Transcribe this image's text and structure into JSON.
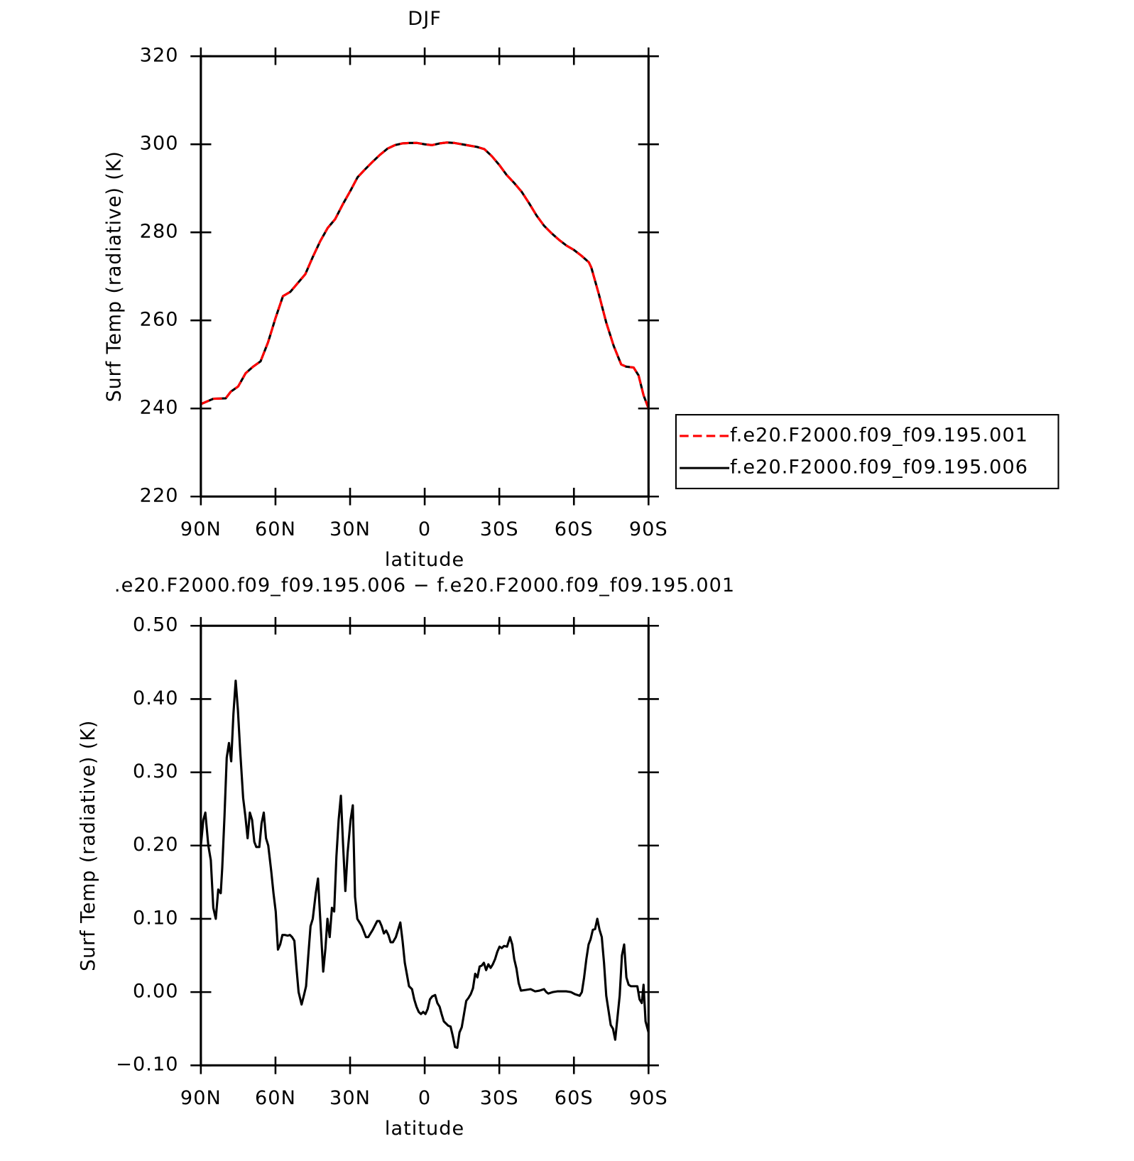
{
  "chart_data": [
    {
      "type": "line",
      "title": "DJF",
      "xlabel": "latitude",
      "ylabel": "Surf Temp (radiative) (K)",
      "x": [
        90,
        85,
        80,
        78,
        75,
        72,
        69,
        66,
        63,
        60,
        57,
        54,
        51,
        48,
        45,
        42,
        39,
        36,
        33,
        30,
        27,
        24,
        21,
        18,
        15,
        12,
        9,
        6,
        3,
        0,
        -3,
        -6,
        -9,
        -12,
        -15,
        -18,
        -21,
        -24,
        -27,
        -30,
        -33,
        -36,
        -39,
        -42,
        -45,
        -48,
        -51,
        -54,
        -57,
        -60,
        -63,
        -66,
        -67,
        -70,
        -73,
        -76,
        -79,
        -81,
        -84,
        -86,
        -88,
        -90
      ],
      "series": [
        {
          "name": "f.e20.F2000.f09_f09.195.006",
          "color": "#000000",
          "dash": false,
          "values": [
            241,
            242.2,
            242.3,
            243.8,
            245,
            248,
            249.5,
            250.7,
            255,
            260.5,
            265.5,
            266.5,
            268.5,
            270.5,
            274.4,
            278,
            281,
            283,
            286.3,
            289.3,
            292.5,
            294.3,
            296,
            297.6,
            299,
            299.8,
            300.2,
            300.3,
            300.3,
            300,
            299.8,
            300.2,
            300.4,
            300.3,
            300,
            299.7,
            299.4,
            298.9,
            297.3,
            295.3,
            293,
            291.2,
            289.2,
            286.6,
            283.8,
            281.5,
            279.8,
            278.3,
            277,
            276,
            274.7,
            273.2,
            272,
            266,
            259.5,
            254.2,
            250,
            249.5,
            249.3,
            247.5,
            243,
            240
          ]
        },
        {
          "name": "f.e20.F2000.f09_f09.195.001",
          "color": "#ff0000",
          "dash": true,
          "values": [
            241,
            242.2,
            242.3,
            243.8,
            245,
            248,
            249.5,
            250.7,
            255,
            260.5,
            265.5,
            266.5,
            268.5,
            270.5,
            274.4,
            278,
            281,
            283,
            286.3,
            289.3,
            292.5,
            294.3,
            296,
            297.6,
            299,
            299.8,
            300.2,
            300.3,
            300.3,
            300,
            299.8,
            300.2,
            300.4,
            300.3,
            300,
            299.7,
            299.4,
            298.9,
            297.3,
            295.3,
            293,
            291.2,
            289.2,
            286.6,
            283.8,
            281.5,
            279.8,
            278.3,
            277,
            276,
            274.7,
            273.2,
            272,
            266,
            259.5,
            254.2,
            250,
            249.5,
            249.3,
            247.5,
            243,
            240
          ]
        }
      ],
      "legend": "outside right",
      "xlim": [
        90,
        -90
      ],
      "xticks": [
        {
          "value": 90,
          "label": "90N"
        },
        {
          "value": 60,
          "label": "60N"
        },
        {
          "value": 30,
          "label": "30N"
        },
        0,
        {
          "value": -30,
          "label": "30S"
        },
        {
          "value": -60,
          "label": "60S"
        },
        {
          "value": -90,
          "label": "90S"
        }
      ],
      "ylim": [
        220,
        320
      ],
      "yticks": [
        220,
        240,
        260,
        280,
        300,
        320
      ]
    },
    {
      "type": "line",
      "title": ".e20.F2000.f09_f09.195.006 − f.e20.F2000.f09_f09.195.001",
      "xlabel": "latitude",
      "ylabel": "Surf Temp (radiative) (K)",
      "x": [
        90,
        89,
        88.2,
        87,
        86,
        85,
        84,
        83,
        82,
        81.4,
        80.5,
        79.6,
        78.7,
        77.8,
        76.9,
        76,
        75.1,
        74.2,
        73,
        72.1,
        71.2,
        70.3,
        69.4,
        68.5,
        67.7,
        66.5,
        65.6,
        64.7,
        63.8,
        62.9,
        61.7,
        60.8,
        59.9,
        59,
        58.1,
        57.2,
        56.3,
        55.1,
        54.2,
        53.3,
        52.4,
        51.6,
        50.7,
        49.5,
        48.6,
        47.7,
        46.8,
        45.9,
        45,
        43.8,
        42.9,
        42,
        40.8,
        39.9,
        39.1,
        38.2,
        37.3,
        36.4,
        35.5,
        34.6,
        33.7,
        32.8,
        31.9,
        31,
        29.8,
        28.9,
        28,
        27.1,
        25.3,
        23.6,
        22.7,
        20.9,
        19.1,
        18.2,
        17.3,
        16.4,
        15.5,
        14.6,
        13.7,
        12.8,
        11.6,
        9.8,
        8.9,
        8,
        7.2,
        6.3,
        5.1,
        4.2,
        3.3,
        2.4,
        1.5,
        0.6,
        -0.3,
        -1.2,
        -2.1,
        -3,
        -4.2,
        -5.1,
        -6,
        -6.8,
        -7.7,
        -8.6,
        -9.5,
        -10.4,
        -11.3,
        -12.2,
        -13.1,
        -14,
        -14.9,
        -15.8,
        -16.7,
        -17.6,
        -18.5,
        -19.4,
        -20.3,
        -21.2,
        -22.1,
        -22.9,
        -23.8,
        -24.7,
        -25.6,
        -26.5,
        -27.4,
        -28.3,
        -29.2,
        -30.1,
        -31,
        -31.9,
        -33.1,
        -34.3,
        -35.2,
        -36,
        -36.9,
        -37.8,
        -38.7,
        -40.8,
        -42.6,
        -44.4,
        -46.2,
        -48,
        -48.9,
        -49.7,
        -51.5,
        -53.3,
        -56.9,
        -58.8,
        -60.5,
        -62.3,
        -63.2,
        -64.1,
        -65,
        -65.9,
        -66.7,
        -67.6,
        -68.5,
        -69.4,
        -70.3,
        -71.2,
        -72.1,
        -73,
        -73.9,
        -74.8,
        -75.7,
        -76.6,
        -77.5,
        -78.4,
        -79.3,
        -80.2,
        -81.1,
        -82,
        -82.9,
        -83.8,
        -84.6,
        -85.5,
        -86.4,
        -87.3,
        -88,
        -88.8,
        -90
      ],
      "values": [
        0.2,
        0.235,
        0.245,
        0.2,
        0.18,
        0.115,
        0.1,
        0.14,
        0.135,
        0.17,
        0.24,
        0.32,
        0.34,
        0.315,
        0.38,
        0.425,
        0.385,
        0.33,
        0.265,
        0.24,
        0.21,
        0.245,
        0.235,
        0.205,
        0.198,
        0.198,
        0.23,
        0.245,
        0.21,
        0.2,
        0.165,
        0.135,
        0.11,
        0.058,
        0.065,
        0.078,
        0.078,
        0.077,
        0.078,
        0.075,
        0.07,
        0.035,
        0,
        -0.017,
        -0.005,
        0.008,
        0.05,
        0.09,
        0.1,
        0.135,
        0.155,
        0.1,
        0.028,
        0.06,
        0.1,
        0.075,
        0.115,
        0.11,
        0.185,
        0.235,
        0.268,
        0.2,
        0.138,
        0.19,
        0.235,
        0.255,
        0.13,
        0.1,
        0.09,
        0.075,
        0.075,
        0.085,
        0.097,
        0.097,
        0.09,
        0.08,
        0.084,
        0.078,
        0.068,
        0.068,
        0.075,
        0.095,
        0.07,
        0.04,
        0.025,
        0.008,
        0.004,
        -0.01,
        -0.02,
        -0.027,
        -0.03,
        -0.027,
        -0.03,
        -0.023,
        -0.01,
        -0.006,
        -0.004,
        -0.015,
        -0.02,
        -0.03,
        -0.04,
        -0.043,
        -0.046,
        -0.047,
        -0.06,
        -0.075,
        -0.076,
        -0.055,
        -0.048,
        -0.03,
        -0.012,
        -0.008,
        -0.003,
        0.005,
        0.025,
        0.02,
        0.035,
        0.036,
        0.04,
        0.03,
        0.038,
        0.033,
        0.038,
        0.045,
        0.055,
        0.062,
        0.06,
        0.063,
        0.062,
        0.075,
        0.065,
        0.045,
        0.032,
        0.012,
        0.002,
        0.003,
        0.004,
        0.001,
        0.002,
        0.004,
        0,
        -0.002,
        0,
        0.001,
        0.001,
        0,
        -0.003,
        -0.005,
        0,
        0.02,
        0.045,
        0.065,
        0.072,
        0.085,
        0.086,
        0.1,
        0.085,
        0.075,
        0.04,
        -0.005,
        -0.025,
        -0.045,
        -0.05,
        -0.065,
        -0.035,
        -0.005,
        0.05,
        0.065,
        0.02,
        0.01,
        0.008,
        0.008,
        0.008,
        0.008,
        -0.01,
        -0.015,
        0.01,
        -0.04,
        -0.055
      ],
      "color": "#000000",
      "xlim": [
        90,
        -90
      ],
      "xticks": [
        {
          "value": 90,
          "label": "90N"
        },
        {
          "value": 60,
          "label": "60N"
        },
        {
          "value": 30,
          "label": "30N"
        },
        0,
        {
          "value": -30,
          "label": "30S"
        },
        {
          "value": -60,
          "label": "60S"
        },
        {
          "value": -90,
          "label": "90S"
        }
      ],
      "ylim": [
        -0.1,
        0.5
      ],
      "yticks": [
        {
          "value": -0.1,
          "label": "−0.10"
        },
        {
          "value": 0,
          "label": "0.00"
        },
        {
          "value": 0.1,
          "label": "0.10"
        },
        {
          "value": 0.2,
          "label": "0.20"
        },
        {
          "value": 0.3,
          "label": "0.30"
        },
        {
          "value": 0.4,
          "label": "0.40"
        },
        {
          "value": 0.5,
          "label": "0.50"
        }
      ]
    }
  ]
}
